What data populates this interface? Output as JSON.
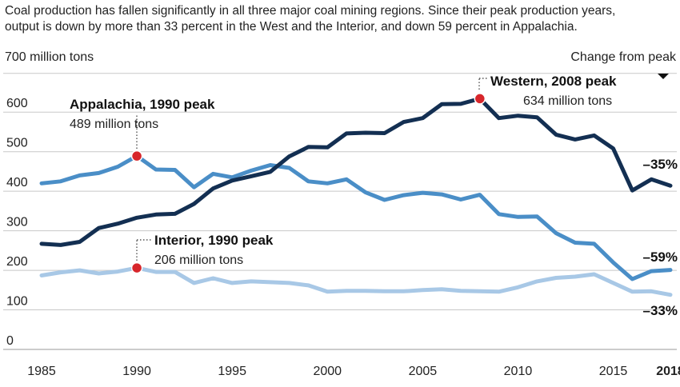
{
  "caption": {
    "line1": "Coal production has fallen significantly in all three major coal mining regions. Since their peak production years,",
    "line2": "output is down by more than 33 percent in the West and the Interior, and down 59 percent in Appalachia."
  },
  "colors": {
    "western": "#132f52",
    "appalachia": "#4a8ec7",
    "interior": "#a8c8e6",
    "peak_dot": "#d7262b",
    "grid": "#c8c8c8"
  },
  "chart_data": {
    "type": "line",
    "ylabel": "700 million tons",
    "right_label": "Change from peak",
    "ylim": [
      0,
      700
    ],
    "xlim": [
      1985,
      2018
    ],
    "y_ticks": [
      "0",
      "100",
      "200",
      "300",
      "400",
      "500",
      "600"
    ],
    "x_ticks": [
      {
        "value": 1985,
        "label": "1985"
      },
      {
        "value": 1990,
        "label": "1990"
      },
      {
        "value": 1995,
        "label": "1995"
      },
      {
        "value": 2000,
        "label": "2000"
      },
      {
        "value": 2005,
        "label": "2005"
      },
      {
        "value": 2010,
        "label": "2010"
      },
      {
        "value": 2015,
        "label": "2015"
      },
      {
        "value": 2018,
        "label": "2018",
        "bold": true
      }
    ],
    "x": [
      1985,
      1986,
      1987,
      1988,
      1989,
      1990,
      1991,
      1992,
      1993,
      1994,
      1995,
      1996,
      1997,
      1998,
      1999,
      2000,
      2001,
      2002,
      2003,
      2004,
      2005,
      2006,
      2007,
      2008,
      2009,
      2010,
      2011,
      2012,
      2013,
      2014,
      2015,
      2016,
      2017,
      2018
    ],
    "series": [
      {
        "key": "western",
        "values": [
          267,
          264,
          272,
          307,
          318,
          333,
          341,
          343,
          368,
          407,
          427,
          438,
          449,
          488,
          512,
          511,
          546,
          548,
          547,
          575,
          585,
          620,
          621,
          634,
          585,
          591,
          587,
          543,
          531,
          541,
          508,
          402,
          430,
          414
        ],
        "change": "–35%",
        "peak": {
          "year": 2008,
          "value": 634,
          "title": "Western, 2008 peak",
          "subtitle": "634 million tons"
        }
      },
      {
        "key": "appalachia",
        "values": [
          420,
          425,
          440,
          446,
          462,
          489,
          455,
          454,
          410,
          444,
          435,
          452,
          466,
          459,
          425,
          420,
          430,
          397,
          378,
          390,
          396,
          392,
          379,
          391,
          342,
          335,
          336,
          294,
          270,
          267,
          220,
          178,
          198,
          201
        ],
        "change": "–59%",
        "peak": {
          "year": 1990,
          "value": 489,
          "title": "Appalachia, 1990 peak",
          "subtitle": "489 million tons"
        }
      },
      {
        "key": "interior",
        "values": [
          187,
          195,
          200,
          192,
          197,
          206,
          196,
          196,
          168,
          180,
          168,
          172,
          170,
          168,
          162,
          146,
          148,
          148,
          147,
          147,
          150,
          152,
          148,
          147,
          146,
          157,
          172,
          181,
          184,
          190,
          168,
          146,
          147,
          138
        ],
        "change": "–33%",
        "peak": {
          "year": 1990,
          "value": 206,
          "title": "Interior, 1990 peak",
          "subtitle": "206 million tons"
        }
      }
    ]
  }
}
